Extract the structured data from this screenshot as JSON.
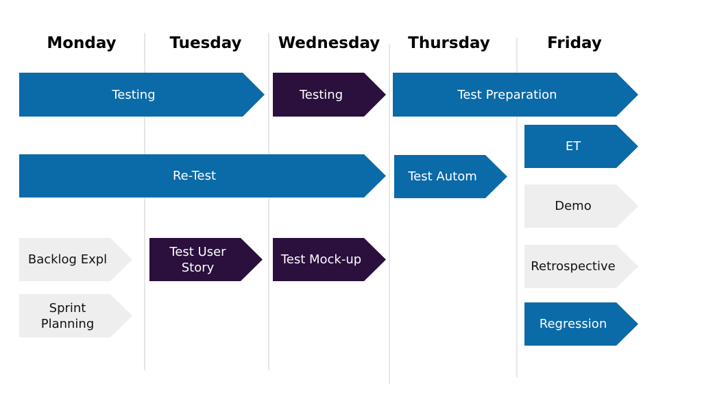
{
  "days": [
    "Monday",
    "Tuesday",
    "Wednesday",
    "Thursday",
    "Friday"
  ],
  "tasks": [
    {
      "label": "Testing"
    },
    {
      "label": "Testing"
    },
    {
      "label": "Test Preparation"
    },
    {
      "label": "ET"
    },
    {
      "label": "Re-Test"
    },
    {
      "label": "Test Autom"
    },
    {
      "label": "Demo"
    },
    {
      "label": "Backlog Expl"
    },
    {
      "label": "Test User Story"
    },
    {
      "label": "Test Mock-up"
    },
    {
      "label": "Retrospective"
    },
    {
      "label": "Sprint Planning"
    },
    {
      "label": "Regression"
    }
  ]
}
